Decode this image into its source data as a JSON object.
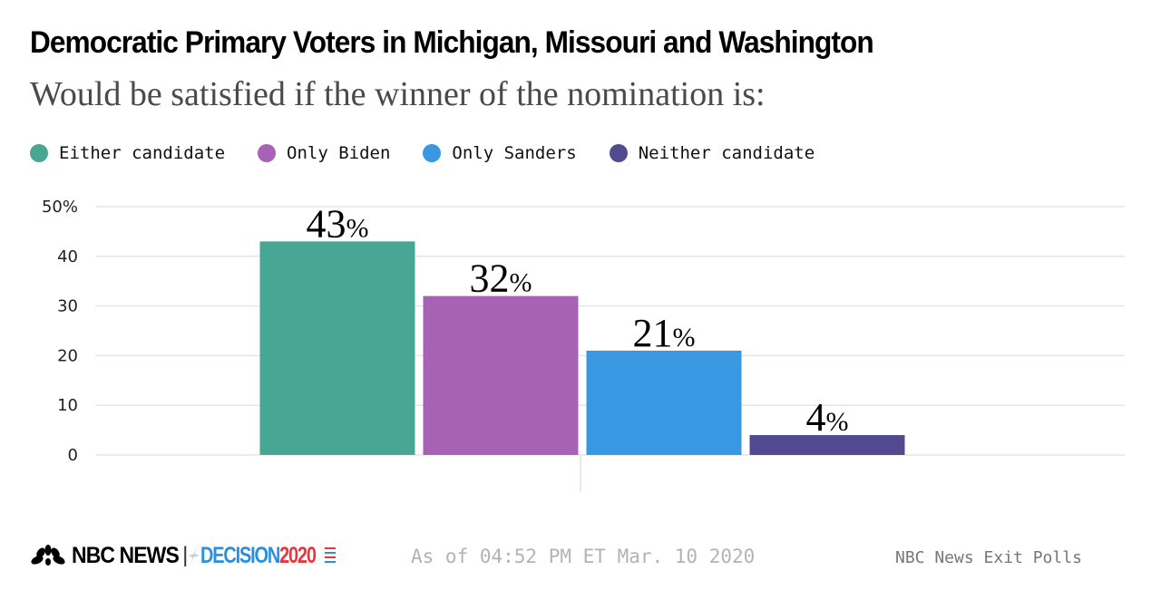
{
  "header": {
    "title": "Democratic Primary Voters in Michigan, Missouri and Washington",
    "subtitle": "Would be satisfied if the winner of the nomination is:"
  },
  "legend": [
    {
      "label": "Either candidate",
      "color": "#48a794"
    },
    {
      "label": "Only Biden",
      "color": "#a862b5"
    },
    {
      "label": "Only Sanders",
      "color": "#3a98e3"
    },
    {
      "label": "Neither candidate",
      "color": "#524a91"
    }
  ],
  "chart_data": {
    "type": "bar",
    "title": "Democratic Primary Voters in Michigan, Missouri and Washington",
    "subtitle": "Would be satisfied if the winner of the nomination is:",
    "categories": [
      "Either candidate",
      "Only Biden",
      "Only Sanders",
      "Neither candidate"
    ],
    "values": [
      43,
      32,
      21,
      4
    ],
    "colors": [
      "#48a794",
      "#a862b5",
      "#3a98e3",
      "#524a91"
    ],
    "data_labels": [
      "43",
      "32",
      "21",
      "4"
    ],
    "data_label_suffix": "%",
    "yticks": [
      0,
      10,
      20,
      30,
      40,
      50
    ],
    "ytick_labels": [
      "0",
      "10",
      "20",
      "30",
      "40",
      "50%"
    ],
    "ylim": [
      0,
      50
    ],
    "xlabel": "",
    "ylabel": "",
    "grid": true,
    "legend_position": "top-left"
  },
  "footer": {
    "brand": "NBC NEWS",
    "separator": "|",
    "decision_word": "DECISION",
    "decision_year": "2020",
    "timestamp": "As of 04:52 PM ET Mar. 10 2020",
    "source": "NBC News Exit Polls"
  }
}
